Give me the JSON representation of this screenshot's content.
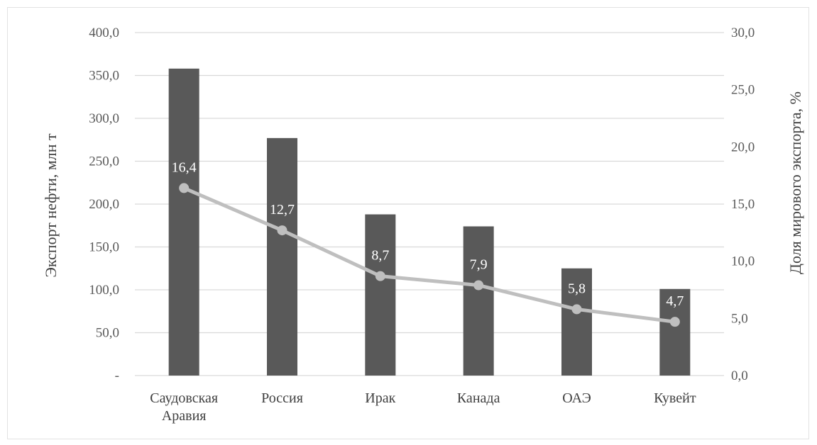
{
  "chart_data": {
    "type": "bar",
    "categories": [
      [
        "Саудовская",
        "Аравия"
      ],
      [
        "Россия"
      ],
      [
        "Ирак"
      ],
      [
        "Канада"
      ],
      [
        "ОАЭ"
      ],
      [
        "Кувейт"
      ]
    ],
    "series": [
      {
        "axis": "left",
        "type": "bar",
        "values": [
          358,
          277,
          188,
          174,
          125,
          101
        ],
        "color": "#595959"
      },
      {
        "axis": "right",
        "type": "line",
        "values": [
          16.4,
          12.7,
          8.7,
          7.9,
          5.8,
          4.7
        ],
        "labels": [
          "16,4",
          "12,7",
          "8,7",
          "7,9",
          "5,8",
          "4,7"
        ],
        "color": "#bfbfbf"
      }
    ],
    "ylabel": "Экспорт нефти, млн т",
    "y2label": "Доля мирового экспорта, %",
    "ylim": [
      0,
      400
    ],
    "y2lim": [
      0,
      30
    ],
    "yticks": [
      "-",
      "50,0",
      "100,0",
      "150,0",
      "200,0",
      "250,0",
      "300,0",
      "350,0",
      "400,0"
    ],
    "y2ticks": [
      "0,0",
      "5,0",
      "10,0",
      "15,0",
      "20,0",
      "25,0",
      "30,0"
    ],
    "grid": true,
    "legend": "none"
  }
}
